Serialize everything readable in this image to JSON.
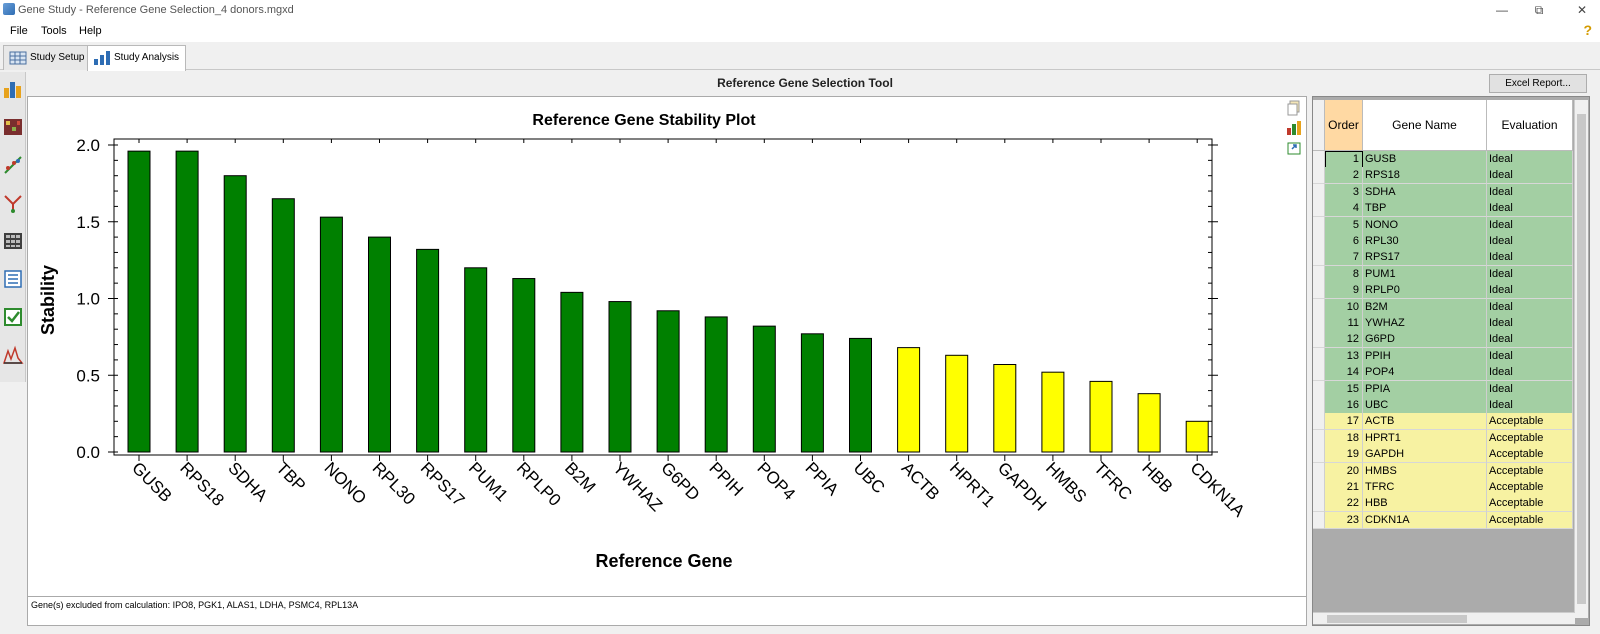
{
  "window": {
    "title": "Gene Study - Reference Gene Selection_4 donors.mgxd"
  },
  "menu": [
    "File",
    "Tools",
    "Help"
  ],
  "help_symbol": "?",
  "tabs": [
    {
      "label": "Study Setup",
      "icon": "grid-icon"
    },
    {
      "label": "Study Analysis",
      "icon": "bar-chart-icon"
    }
  ],
  "left_toolbar": [
    "bar-chart-icon",
    "heatmap-icon",
    "scatter-icon",
    "cluster-icon",
    "table-icon",
    "list-icon",
    "checkbox-icon",
    "histogram-icon"
  ],
  "tool": {
    "title": "Reference Gene Selection Tool",
    "excel_button": "Excel Report..."
  },
  "chart_data": {
    "type": "bar",
    "title": "Reference Gene Stability Plot",
    "xlabel": "Reference Gene",
    "ylabel": "Stability",
    "ylim": [
      0,
      2.0
    ],
    "yticks": [
      "0.0",
      "0.5",
      "1.0",
      "1.5",
      "2.0"
    ],
    "categories": [
      "GUSB",
      "RPS18",
      "SDHA",
      "TBP",
      "NONO",
      "RPL30",
      "RPS17",
      "PUM1",
      "RPLP0",
      "B2M",
      "YWHAZ",
      "G6PD",
      "PPIH",
      "POP4",
      "PPIA",
      "UBC",
      "ACTB",
      "HPRT1",
      "GAPDH",
      "HMBS",
      "TFRC",
      "HBB",
      "CDKN1A"
    ],
    "values": [
      1.96,
      1.96,
      1.8,
      1.65,
      1.53,
      1.4,
      1.32,
      1.2,
      1.13,
      1.04,
      0.98,
      0.92,
      0.88,
      0.82,
      0.77,
      0.74,
      0.68,
      0.63,
      0.57,
      0.52,
      0.46,
      0.38,
      0.2
    ],
    "colors": [
      "#008000",
      "#008000",
      "#008000",
      "#008000",
      "#008000",
      "#008000",
      "#008000",
      "#008000",
      "#008000",
      "#008000",
      "#008000",
      "#008000",
      "#008000",
      "#008000",
      "#008000",
      "#008000",
      "#ffff00",
      "#ffff00",
      "#ffff00",
      "#ffff00",
      "#ffff00",
      "#ffff00",
      "#ffff00"
    ]
  },
  "footnote": "Gene(s) excluded from calculation: IPO8, PGK1, ALAS1, LDHA, PSMC4, RPL13A",
  "grid": {
    "headers": [
      "Order",
      "Gene Name",
      "Evaluation"
    ],
    "colors": {
      "Ideal": "#a3cfa3",
      "Acceptable": "#f7f2a2"
    },
    "rows": [
      [
        "1",
        "GUSB",
        "Ideal"
      ],
      [
        "2",
        "RPS18",
        "Ideal"
      ],
      [
        "3",
        "SDHA",
        "Ideal"
      ],
      [
        "4",
        "TBP",
        "Ideal"
      ],
      [
        "5",
        "NONO",
        "Ideal"
      ],
      [
        "6",
        "RPL30",
        "Ideal"
      ],
      [
        "7",
        "RPS17",
        "Ideal"
      ],
      [
        "8",
        "PUM1",
        "Ideal"
      ],
      [
        "9",
        "RPLP0",
        "Ideal"
      ],
      [
        "10",
        "B2M",
        "Ideal"
      ],
      [
        "11",
        "YWHAZ",
        "Ideal"
      ],
      [
        "12",
        "G6PD",
        "Ideal"
      ],
      [
        "13",
        "PPIH",
        "Ideal"
      ],
      [
        "14",
        "POP4",
        "Ideal"
      ],
      [
        "15",
        "PPIA",
        "Ideal"
      ],
      [
        "16",
        "UBC",
        "Ideal"
      ],
      [
        "17",
        "ACTB",
        "Acceptable"
      ],
      [
        "18",
        "HPRT1",
        "Acceptable"
      ],
      [
        "19",
        "GAPDH",
        "Acceptable"
      ],
      [
        "20",
        "HMBS",
        "Acceptable"
      ],
      [
        "21",
        "TFRC",
        "Acceptable"
      ],
      [
        "22",
        "HBB",
        "Acceptable"
      ],
      [
        "23",
        "CDKN1A",
        "Acceptable"
      ]
    ]
  }
}
